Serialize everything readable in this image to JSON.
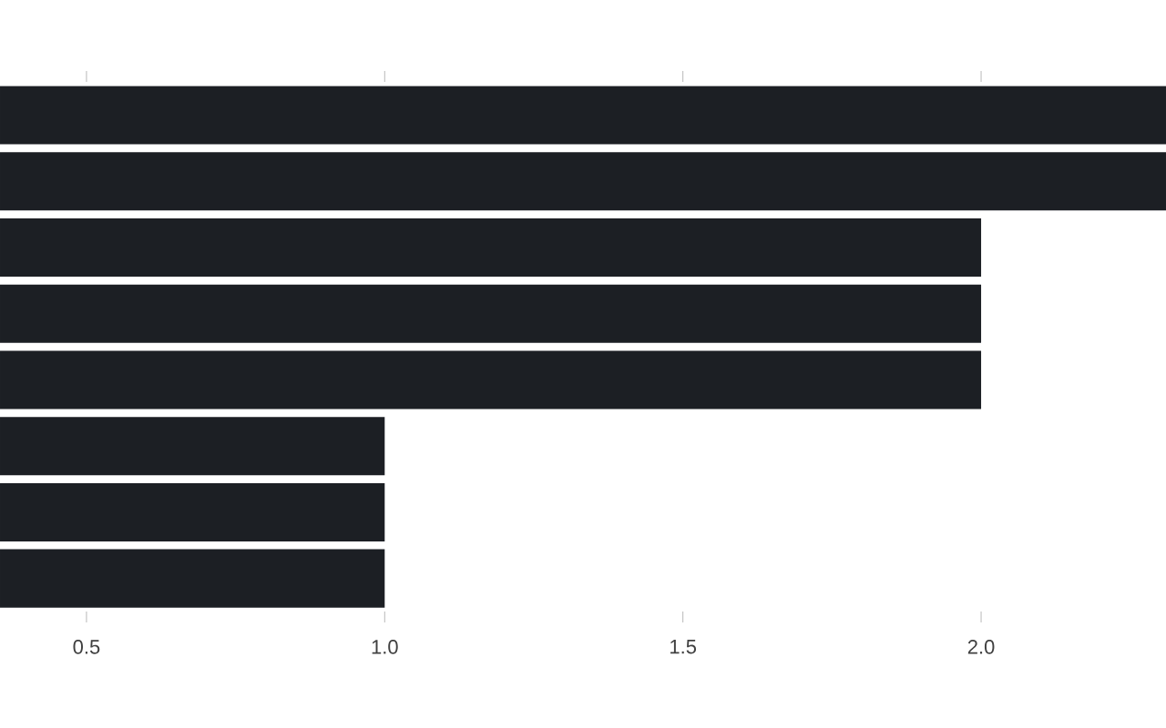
{
  "chart_data": {
    "type": "bar",
    "orientation": "horizontal",
    "categories": [
      null,
      null,
      null,
      null,
      null,
      null,
      null,
      null
    ],
    "values": [
      2.31,
      2.31,
      2,
      2,
      2,
      1,
      1,
      1
    ],
    "color": "#1c1f24",
    "xlim": [
      0.355,
      2.31
    ],
    "xticks": [
      0.5,
      {
        "value": 1,
        "label": "1.0"
      },
      1.5,
      {
        "value": 2,
        "label": "2.0"
      }
    ],
    "tick_labels": "x"
  }
}
